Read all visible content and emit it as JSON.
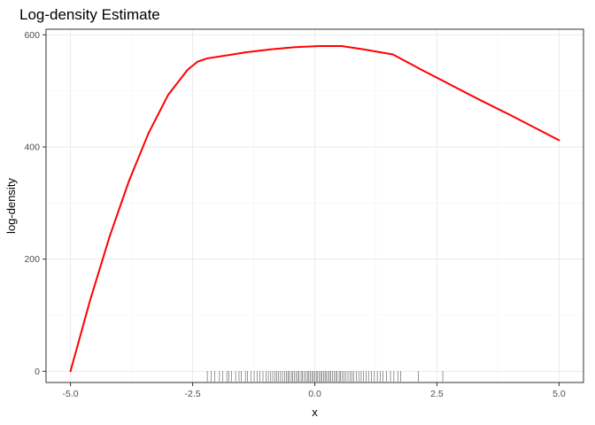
{
  "chart_data": {
    "type": "line",
    "title": "Log-density Estimate",
    "xlabel": "x",
    "ylabel": "log-density",
    "xlim": [
      -5.5,
      5.5
    ],
    "ylim": [
      -20,
      610
    ],
    "xticks": [
      -5.0,
      -2.5,
      0.0,
      2.5,
      5.0
    ],
    "xtick_labels": [
      "-5.0",
      "-2.5",
      "0.0",
      "2.5",
      "5.0"
    ],
    "yticks": [
      0,
      200,
      400,
      600
    ],
    "ytick_labels": [
      "0",
      "200",
      "400",
      "600"
    ],
    "grid": true,
    "colors": {
      "line": "#ff0000",
      "rug": "#000000",
      "grid_major": "#ebebeb",
      "grid_minor": "#f5f5f5",
      "panel_border": "#333333"
    },
    "series": [
      {
        "x": [
          -5.0,
          -4.6,
          -4.2,
          -3.8,
          -3.4,
          -3.0,
          -2.6,
          -2.4,
          -2.2,
          -1.9,
          -1.4,
          -0.9,
          -0.4,
          0.1,
          0.55,
          1.0,
          1.6,
          2.2,
          2.8,
          3.4,
          4.0,
          4.6,
          5.0
        ],
        "y": [
          0,
          126,
          240,
          340,
          425,
          493,
          538,
          552,
          558,
          562,
          569,
          574,
          578,
          580,
          580,
          574,
          565,
          537,
          510,
          483,
          457,
          430,
          412
        ]
      }
    ],
    "rug": [
      -2.2,
      -2.12,
      -2.05,
      -1.95,
      -1.88,
      -1.8,
      -1.76,
      -1.7,
      -1.62,
      -1.55,
      -1.5,
      -1.42,
      -1.38,
      -1.3,
      -1.24,
      -1.18,
      -1.12,
      -1.06,
      -1.0,
      -0.95,
      -0.9,
      -0.86,
      -0.82,
      -0.78,
      -0.74,
      -0.7,
      -0.66,
      -0.62,
      -0.58,
      -0.55,
      -0.52,
      -0.48,
      -0.45,
      -0.42,
      -0.38,
      -0.35,
      -0.32,
      -0.28,
      -0.25,
      -0.22,
      -0.18,
      -0.15,
      -0.12,
      -0.09,
      -0.06,
      -0.03,
      0.0,
      0.03,
      0.06,
      0.09,
      0.12,
      0.15,
      0.18,
      0.21,
      0.24,
      0.27,
      0.3,
      0.33,
      0.36,
      0.4,
      0.43,
      0.46,
      0.5,
      0.53,
      0.56,
      0.6,
      0.64,
      0.68,
      0.72,
      0.76,
      0.8,
      0.85,
      0.9,
      0.95,
      1.0,
      1.05,
      1.1,
      1.16,
      1.22,
      1.28,
      1.34,
      1.4,
      1.47,
      1.55,
      1.62,
      1.7,
      1.76,
      2.12,
      2.62
    ]
  }
}
